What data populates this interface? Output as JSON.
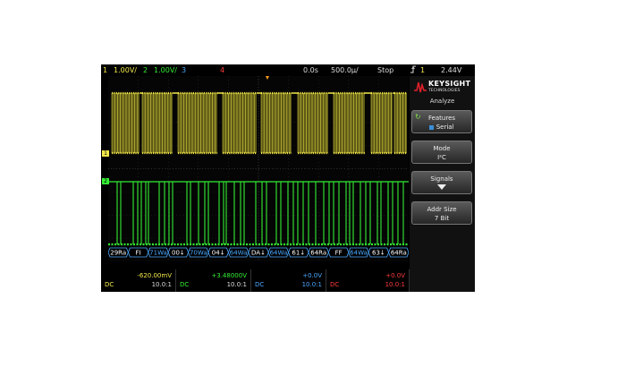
{
  "top": {
    "ch1_num": "1",
    "ch1_scale": "1.00V/",
    "ch2_num": "2",
    "ch2_scale": "1.00V/",
    "ch3_num": "3",
    "ch4_num": "4",
    "time_pos": "0.0s",
    "time_scale": "500.0µ/",
    "run_state": "Stop",
    "trigger_icon": "rising-edge-trigger-icon",
    "trigger_ch": "1",
    "trigger_level": "2.44V"
  },
  "brand": {
    "name": "KEYSIGHT",
    "sub": "TECHNOLOGIES"
  },
  "menu": {
    "title": "Analyze",
    "keys": [
      {
        "line1": "Features",
        "line2": "Serial",
        "icon": "rotate-knob-icon"
      },
      {
        "line1": "Mode",
        "line2": "I²C"
      },
      {
        "line1": "Signals",
        "icon": "down-arrow-icon"
      },
      {
        "line1": "Addr Size",
        "line2": "7 Bit"
      }
    ]
  },
  "decode": [
    {
      "text": "29Ra",
      "color": "#ffffff"
    },
    {
      "text": "FI",
      "color": "#ffffff"
    },
    {
      "text": "71Wa",
      "color": "#4aa8ff"
    },
    {
      "text": "00↓",
      "color": "#ffffff"
    },
    {
      "text": "70Wa",
      "color": "#4aa8ff"
    },
    {
      "text": "04↓",
      "color": "#ffffff"
    },
    {
      "text": "64Wa",
      "color": "#4aa8ff"
    },
    {
      "text": "DA↓",
      "color": "#ffffff"
    },
    {
      "text": "64Wa",
      "color": "#4aa8ff"
    },
    {
      "text": "61↓",
      "color": "#ffffff"
    },
    {
      "text": "64Ra",
      "color": "#ffffff"
    },
    {
      "text": "FF",
      "color": "#ffffff"
    },
    {
      "text": "64Wa",
      "color": "#4aa8ff"
    },
    {
      "text": "63↓",
      "color": "#ffffff"
    },
    {
      "text": "64Ra",
      "color": "#ffffff"
    }
  ],
  "channels": [
    {
      "offset": "-620.00mV",
      "coupling": "DC",
      "probe": "10.0:1",
      "color": "#f2e84a"
    },
    {
      "offset": "+3.48000V",
      "coupling": "DC",
      "probe": "10.0:1",
      "color": "#33ee33"
    },
    {
      "offset": "+0.0V",
      "coupling": "DC",
      "probe": "10.0:1",
      "color": "#4aa8ff"
    },
    {
      "offset": "+0.0V",
      "coupling": "DC",
      "probe": "10.0:1",
      "color": "#ff3b3b"
    }
  ],
  "colors": {
    "ch1": "#f2e84a",
    "ch2": "#33ee33",
    "ch3": "#4aa8ff",
    "ch4": "#ff3b3b",
    "brand_red": "#e0202a"
  }
}
